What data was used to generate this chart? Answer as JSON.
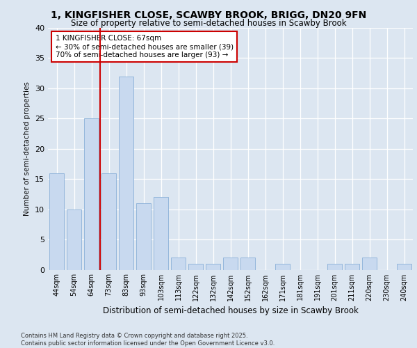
{
  "title1": "1, KINGFISHER CLOSE, SCAWBY BROOK, BRIGG, DN20 9FN",
  "title2": "Size of property relative to semi-detached houses in Scawby Brook",
  "xlabel": "Distribution of semi-detached houses by size in Scawby Brook",
  "ylabel": "Number of semi-detached properties",
  "categories": [
    "44sqm",
    "54sqm",
    "64sqm",
    "73sqm",
    "83sqm",
    "93sqm",
    "103sqm",
    "113sqm",
    "122sqm",
    "132sqm",
    "142sqm",
    "152sqm",
    "162sqm",
    "171sqm",
    "181sqm",
    "191sqm",
    "201sqm",
    "211sqm",
    "220sqm",
    "230sqm",
    "240sqm"
  ],
  "values": [
    16,
    10,
    25,
    16,
    32,
    11,
    12,
    2,
    1,
    1,
    2,
    2,
    0,
    1,
    0,
    0,
    1,
    1,
    2,
    0,
    1
  ],
  "bar_color": "#c8d9ef",
  "bar_edge_color": "#8ab0d8",
  "background_color": "#dce6f1",
  "plot_bg_color": "#dce6f1",
  "grid_color": "#ffffff",
  "vline_x": 2.5,
  "vline_color": "#cc0000",
  "annotation_text": "1 KINGFISHER CLOSE: 67sqm\n← 30% of semi-detached houses are smaller (39)\n70% of semi-detached houses are larger (93) →",
  "annotation_box_color": "#ffffff",
  "annotation_box_edge": "#cc0000",
  "footnote": "Contains HM Land Registry data © Crown copyright and database right 2025.\nContains public sector information licensed under the Open Government Licence v3.0.",
  "ylim": [
    0,
    40
  ],
  "yticks": [
    0,
    5,
    10,
    15,
    20,
    25,
    30,
    35,
    40
  ]
}
